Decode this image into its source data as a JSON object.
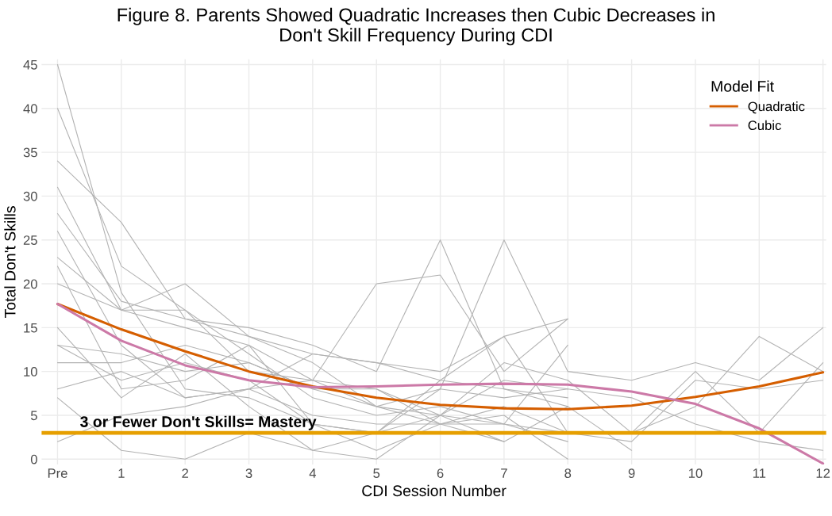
{
  "chart_data": {
    "type": "line",
    "title": "Figure 8. Parents Showed Quadratic Increases then Cubic Decreases in\nDon't Skill Frequency During CDI",
    "xlabel": "CDI Session Number",
    "ylabel": "Total Don't Skills",
    "legend_title": "Model Fit",
    "xlim": [
      -0.25,
      12.05
    ],
    "ylim": [
      -0.6,
      45.6
    ],
    "xticks": [
      {
        "value": 0,
        "label": "Pre"
      },
      1,
      2,
      3,
      4,
      5,
      6,
      7,
      8,
      9,
      10,
      11,
      12
    ],
    "yticks": [
      0,
      5,
      10,
      15,
      20,
      25,
      30,
      35,
      40,
      45
    ],
    "grid": true,
    "legend": "top right",
    "series": [
      {
        "color": "#b3b3b3",
        "x": [
          0,
          1,
          2,
          3,
          4,
          5,
          6,
          7
        ],
        "values": [
          45,
          19,
          8,
          7,
          4,
          3,
          5,
          2
        ]
      },
      {
        "color": "#b3b3b3",
        "x": [
          0,
          1,
          2,
          3,
          4,
          5,
          6,
          7,
          8
        ],
        "values": [
          40,
          22,
          17,
          12,
          7,
          5,
          6,
          4,
          2
        ]
      },
      {
        "color": "#b3b3b3",
        "x": [
          0,
          1,
          2,
          3,
          4,
          5,
          6,
          7,
          8
        ],
        "values": [
          34,
          27,
          16,
          14,
          12,
          11,
          9,
          8,
          7
        ]
      },
      {
        "color": "#b3b3b3",
        "x": [
          0,
          1,
          2,
          3,
          4,
          5,
          6,
          7,
          8
        ],
        "values": [
          31,
          17,
          20,
          14,
          11,
          6,
          4,
          4,
          3
        ]
      },
      {
        "color": "#b3b3b3",
        "x": [
          0,
          1,
          2,
          3,
          4,
          5,
          6,
          7,
          8
        ],
        "values": [
          28,
          18,
          16,
          15,
          13,
          10,
          25,
          8,
          6
        ]
      },
      {
        "color": "#b3b3b3",
        "x": [
          0,
          1,
          2,
          3,
          4,
          5,
          6,
          7,
          8
        ],
        "values": [
          26,
          13,
          7,
          8,
          5,
          4,
          4,
          5,
          0
        ]
      },
      {
        "color": "#b3b3b3",
        "x": [
          0,
          1,
          2,
          3,
          4,
          5,
          6,
          7,
          8
        ],
        "values": [
          23,
          17,
          15,
          13,
          9,
          20,
          21,
          10,
          16
        ]
      },
      {
        "color": "#b3b3b3",
        "x": [
          0,
          1,
          2,
          3,
          4,
          5,
          6,
          7,
          8,
          9,
          10,
          11,
          12
        ],
        "values": [
          22,
          8,
          9,
          13,
          4,
          3,
          8,
          25,
          10,
          9,
          11,
          9,
          15
        ]
      },
      {
        "color": "#b3b3b3",
        "x": [
          0,
          1,
          2,
          3,
          4,
          5,
          6,
          7,
          8,
          9,
          10,
          11,
          12
        ],
        "values": [
          20,
          17,
          17,
          10,
          9,
          8,
          5,
          11,
          9,
          3,
          6,
          14,
          10
        ]
      },
      {
        "color": "#b3b3b3",
        "x": [
          0,
          1,
          2,
          3,
          4,
          5,
          6,
          7,
          8,
          9,
          10,
          11,
          12
        ],
        "values": [
          15,
          7,
          12,
          6,
          1,
          3,
          9,
          14,
          3,
          2,
          9,
          8,
          9
        ]
      },
      {
        "color": "#b3b3b3",
        "x": [
          0,
          1,
          2,
          3,
          4,
          5,
          6,
          7,
          8,
          9,
          10,
          11,
          12
        ],
        "values": [
          13,
          9,
          11,
          9,
          4,
          1,
          4,
          6,
          3,
          3,
          10,
          3,
          11
        ]
      },
      {
        "color": "#b3b3b3",
        "x": [
          0,
          1,
          2,
          3,
          4,
          5,
          6,
          7,
          8,
          9,
          10,
          11,
          12
        ],
        "values": [
          13,
          12,
          10,
          11,
          8,
          6,
          8,
          7,
          8,
          7,
          4,
          2,
          1
        ]
      },
      {
        "color": "#b3b3b3",
        "x": [
          0,
          1,
          2,
          3,
          4,
          5,
          6,
          7,
          8,
          9
        ],
        "values": [
          11,
          11,
          13,
          11,
          8,
          8,
          4,
          2,
          6,
          1
        ]
      },
      {
        "color": "#b3b3b3",
        "x": [
          0,
          1,
          2,
          3,
          4,
          5,
          6,
          7,
          8
        ],
        "values": [
          8,
          10,
          7,
          8,
          9,
          6,
          5,
          4,
          13
        ]
      },
      {
        "color": "#b3b3b3",
        "x": [
          0,
          1,
          2,
          3,
          4,
          5,
          6,
          7,
          8
        ],
        "values": [
          7,
          1,
          0,
          3,
          1,
          0,
          5,
          9,
          8
        ]
      },
      {
        "color": "#b3b3b3",
        "x": [
          0,
          1,
          2,
          3,
          4,
          5,
          6,
          7,
          8
        ],
        "values": [
          2,
          5,
          6,
          8,
          12,
          11,
          10,
          14,
          16
        ]
      },
      {
        "name": "Quadratic",
        "color": "#d55e00",
        "x": [
          0,
          1,
          2,
          3,
          4,
          5,
          6,
          7,
          8,
          9,
          10,
          11,
          12
        ],
        "values": [
          17.7,
          14.8,
          12.3,
          10,
          8.3,
          7,
          6.2,
          5.8,
          5.7,
          6.1,
          7.1,
          8.3,
          9.9
        ]
      },
      {
        "name": "Cubic",
        "color": "#cc79a7",
        "x": [
          0,
          1,
          2,
          3,
          4,
          5,
          6,
          7,
          8,
          9,
          10,
          11,
          12
        ],
        "values": [
          17.7,
          13.5,
          10.7,
          9,
          8.2,
          8.3,
          8.5,
          8.6,
          8.5,
          7.7,
          6.3,
          3.5,
          -0.5
        ]
      }
    ],
    "ref_lines": [
      {
        "axis": "y",
        "value": 3,
        "label": "3 or Fewer Don't Skills= Mastery",
        "color": "#e69f00"
      }
    ]
  }
}
